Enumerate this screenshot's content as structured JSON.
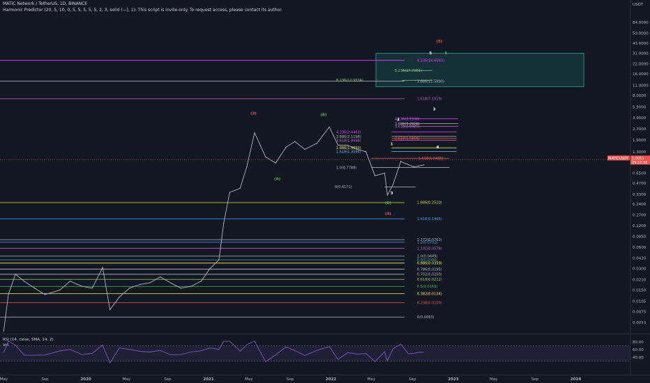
{
  "header": {
    "symbol_line": "MATIC Network / TetherUS, 1D, BINANCE",
    "indicator_line": "Harmonic Predictor (20, 5, 10, 0, 5, 5, 5, 5, 5, 2, 3, solid (—), 1): This script is invite-only. To request access, please contact its author."
  },
  "rsi_panel": {
    "title": "RSI (14, close, SMA, 14, 2)",
    "vol_label": "Vol"
  },
  "chart_data": {
    "type": "line",
    "scale": "log",
    "currency": "USDT",
    "price_axis_ticks": [
      "84.0000",
      "59.0000",
      "43.0000",
      "31.0000",
      "22.0000",
      "16.0000",
      "11.0000",
      "8.0000",
      "5.5000",
      "3.9000",
      "2.7000",
      "1.9000",
      "1.3000",
      "0.9300",
      "0.6500",
      "0.4700",
      "0.3300",
      "0.2400",
      "0.1700",
      "0.1200",
      "0.0850",
      "0.0600",
      "0.0420",
      "0.0300",
      "0.0210",
      "0.0150",
      "0.0105",
      "0.0075",
      "0.0053"
    ],
    "rsi_axis_ticks": [
      "80.00",
      "60.00",
      "40.00"
    ],
    "time_axis_labels": [
      "May",
      "Sep",
      "2020",
      "May",
      "Sep",
      "2021",
      "May",
      "Sep",
      "2022",
      "May",
      "Sep",
      "2023",
      "May",
      "Sep",
      "2024"
    ],
    "last_price_tag": "MATICUSDT",
    "last_price_countdown": "09:15:56",
    "last_price_value": "1.0011",
    "price_series": [
      {
        "x": "2019-05-01",
        "y": 0.004
      },
      {
        "x": "2019-05-15",
        "y": 0.013
      },
      {
        "x": "2019-06-05",
        "y": 0.025
      },
      {
        "x": "2019-07-01",
        "y": 0.02
      },
      {
        "x": "2019-08-01",
        "y": 0.016
      },
      {
        "x": "2019-09-01",
        "y": 0.013
      },
      {
        "x": "2019-10-15",
        "y": 0.015
      },
      {
        "x": "2019-11-15",
        "y": 0.02
      },
      {
        "x": "2019-12-20",
        "y": 0.017
      },
      {
        "x": "2020-01-20",
        "y": 0.016
      },
      {
        "x": "2020-02-20",
        "y": 0.031
      },
      {
        "x": "2020-03-13",
        "y": 0.008
      },
      {
        "x": "2020-04-10",
        "y": 0.012
      },
      {
        "x": "2020-05-10",
        "y": 0.016
      },
      {
        "x": "2020-06-10",
        "y": 0.018
      },
      {
        "x": "2020-07-10",
        "y": 0.019
      },
      {
        "x": "2020-08-10",
        "y": 0.023
      },
      {
        "x": "2020-09-10",
        "y": 0.019
      },
      {
        "x": "2020-10-10",
        "y": 0.016
      },
      {
        "x": "2020-11-10",
        "y": 0.017
      },
      {
        "x": "2020-12-10",
        "y": 0.02
      },
      {
        "x": "2021-01-05",
        "y": 0.03
      },
      {
        "x": "2021-02-01",
        "y": 0.04
      },
      {
        "x": "2021-02-15",
        "y": 0.13
      },
      {
        "x": "2021-03-05",
        "y": 0.35
      },
      {
        "x": "2021-04-05",
        "y": 0.4
      },
      {
        "x": "2021-04-25",
        "y": 0.8
      },
      {
        "x": "2021-05-18",
        "y": 2.4
      },
      {
        "x": "2021-06-20",
        "y": 1.1
      },
      {
        "x": "2021-07-20",
        "y": 0.9
      },
      {
        "x": "2021-08-20",
        "y": 1.5
      },
      {
        "x": "2021-09-15",
        "y": 1.8
      },
      {
        "x": "2021-10-15",
        "y": 1.4
      },
      {
        "x": "2021-11-20",
        "y": 1.7
      },
      {
        "x": "2021-12-27",
        "y": 2.88
      },
      {
        "x": "2022-01-22",
        "y": 1.6
      },
      {
        "x": "2022-02-20",
        "y": 1.6
      },
      {
        "x": "2022-03-20",
        "y": 1.4
      },
      {
        "x": "2022-04-15",
        "y": 1.3
      },
      {
        "x": "2022-05-12",
        "y": 0.6
      },
      {
        "x": "2022-06-10",
        "y": 0.65
      },
      {
        "x": "2022-06-18",
        "y": 0.32
      },
      {
        "x": "2022-07-05",
        "y": 0.45
      },
      {
        "x": "2022-07-28",
        "y": 0.95
      },
      {
        "x": "2022-08-20",
        "y": 0.85
      },
      {
        "x": "2022-09-05",
        "y": 0.8
      },
      {
        "x": "2022-09-20",
        "y": 0.82
      },
      {
        "x": "2022-10-05",
        "y": 0.85
      }
    ],
    "fib_levels": [
      {
        "label": "4.236(24.6540)",
        "price": 24.654,
        "color": "#e040fb"
      },
      {
        "label": "8.236(17.7381)",
        "price": 17.7381,
        "color": "#81c784"
      },
      {
        "label": "3.886(12.5890)",
        "price": 12.589,
        "color": "#b2b5be"
      },
      {
        "label": "8.236(12.9534)",
        "price": 12.9534,
        "color": "#81c784"
      },
      {
        "label": "1.618(7.1519)",
        "price": 7.1519,
        "color": "#ba68c8"
      },
      {
        "label": "4.236(3.7506)",
        "price": 3.7506,
        "color": "#e040fb"
      },
      {
        "label": "3.886(3.2028)",
        "price": 3.2028,
        "color": "#b2b5be"
      },
      {
        "label": "3.618(2.9325)",
        "price": 2.9325,
        "color": "#ba68c8"
      },
      {
        "label": "4.236(2.4461)",
        "price": 2.4461,
        "color": "#e040fb"
      },
      {
        "label": "3.886(2.1198)",
        "price": 2.1198,
        "color": "#b2b5be"
      },
      {
        "label": "3.618(1.8698)",
        "price": 1.8698,
        "color": "#ba68c8"
      },
      {
        "label": "2.618(1.9866)",
        "price": 1.9866,
        "color": "#ef5350"
      },
      {
        "label": "1.886(1.4691)",
        "price": 1.4691,
        "color": "#ffee58"
      },
      {
        "label": "1.618(1.3094)",
        "price": 1.3094,
        "color": "#64b5f6"
      },
      {
        "label": "1.618(1.0486)",
        "price": 1.0486,
        "color": "#ef5350"
      },
      {
        "label": "1.0(0.7788)",
        "price": 0.7788,
        "color": "#b2b5be"
      },
      {
        "label": "0(0.4171)",
        "price": 0.4171,
        "color": "#b2b5be"
      },
      {
        "label": "1.886(0.2520)",
        "price": 0.252,
        "color": "#cddc39"
      },
      {
        "label": "1.618(0.1495)",
        "price": 0.1495,
        "color": "#42a5f5"
      },
      {
        "label": "1.272(0.0763)",
        "price": 0.0763,
        "color": "#b2b5be"
      },
      {
        "label": "1.2(0.0702)",
        "price": 0.0702,
        "color": "#42a5f5"
      },
      {
        "label": "1.131(0.0578)",
        "price": 0.0578,
        "color": "#ba68c8"
      },
      {
        "label": "1.0(0.0449)",
        "price": 0.0449,
        "color": "#b2b5be"
      },
      {
        "label": "0.9(0.0398)",
        "price": 0.0398,
        "color": "#26a69a"
      },
      {
        "label": "0.886(0.0359)",
        "price": 0.0359,
        "color": "#ffee58"
      },
      {
        "label": "0.786(0.0295)",
        "price": 0.0295,
        "color": "#b2b5be"
      },
      {
        "label": "0.702(0.0250)",
        "price": 0.025,
        "color": "#b2b5be"
      },
      {
        "label": "0.618(0.0212)",
        "price": 0.0212,
        "color": "#9ccc65"
      },
      {
        "label": "0.5(0.0169)",
        "price": 0.0169,
        "color": "#4caf50"
      },
      {
        "label": "0.382(0.0134)",
        "price": 0.0134,
        "color": "#ffee58"
      },
      {
        "label": "0.236(0.0100)",
        "price": 0.01,
        "color": "#ef5350"
      },
      {
        "label": "0(0.0063)",
        "price": 0.0063,
        "color": "#b2b5be"
      }
    ],
    "wave_labels": [
      {
        "text": "(5)",
        "x": "2022-11-20",
        "y": 44.0,
        "color": "#ef5350"
      },
      {
        "text": "5",
        "x": "2022-10-25",
        "y": 30.0,
        "color": "#ffffff"
      },
      {
        "text": "5",
        "x": "2022-12-10",
        "y": 30.0,
        "color": "#4caf50"
      },
      {
        "text": "3",
        "x": "2022-11-05",
        "y": 4.9,
        "color": "#ffffff"
      },
      {
        "text": "3",
        "x": "2022-07-20",
        "y": 3.5,
        "color": "#ffffff"
      },
      {
        "text": "1",
        "x": "2022-07-01",
        "y": 1.6,
        "color": "#ffee58"
      },
      {
        "text": "4",
        "x": "2022-11-15",
        "y": 1.45,
        "color": "#ffffff"
      },
      {
        "text": "(3)",
        "x": "2021-05-15",
        "y": 4.3,
        "color": "#ef5350"
      },
      {
        "text": "(B)",
        "x": "2021-12-10",
        "y": 4.1,
        "color": "#4caf50"
      },
      {
        "text": "(A)",
        "x": "2021-07-25",
        "y": 0.52,
        "color": "#4caf50"
      },
      {
        "text": "(C)",
        "x": "2022-06-20",
        "y": 0.24,
        "color": "#4caf50"
      },
      {
        "text": "(4)",
        "x": "2022-06-20",
        "y": 0.17,
        "color": "#ef5350"
      },
      {
        "text": "3",
        "x": "2022-07-01",
        "y": 0.33,
        "color": "#ffffff"
      },
      {
        "text": "(1)",
        "x": "2019-03-25",
        "y": 0.08,
        "color": "#ef5350"
      }
    ],
    "target_box": {
      "x0": "2022-05-15",
      "x1": "2024-01-25",
      "y_top": 31.0,
      "y_bottom": 10.5,
      "color": "#26a69a"
    }
  }
}
